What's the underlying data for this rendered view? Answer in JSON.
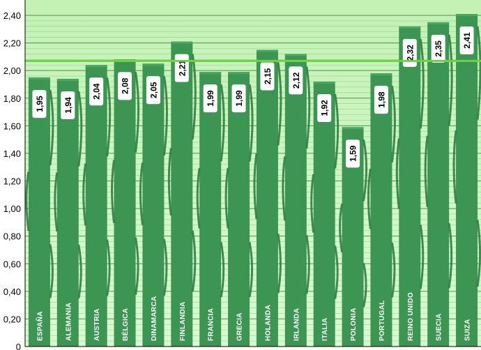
{
  "chart_data": {
    "type": "bar",
    "title": "",
    "xlabel": "",
    "ylabel": "",
    "ylim": [
      0,
      2.4
    ],
    "yticks": [
      "0",
      "0,20",
      "0,40",
      "0,60",
      "0,80",
      "1,00",
      "1,20",
      "1,40",
      "1,60",
      "1,80",
      "2,00",
      "2,20",
      "2,40"
    ],
    "categories": [
      "ESPAÑA",
      "ALEMANIA",
      "AUSTRIA",
      "BÉLGICA",
      "DINAMARCA",
      "FINLANDIA",
      "FRANCIA",
      "GRECIA",
      "HOLANDA",
      "IRLANDA",
      "ITALIA",
      "POLONIA",
      "PORTUGAL",
      "REINO UNIDO",
      "SUECIA",
      "SUIZA"
    ],
    "values": [
      1.95,
      1.94,
      2.04,
      2.08,
      2.05,
      2.21,
      1.99,
      1.99,
      2.15,
      2.12,
      1.92,
      1.59,
      1.98,
      2.32,
      2.35,
      2.41
    ],
    "value_labels": [
      "1,95",
      "1,94",
      "2,04",
      "2,08",
      "2,05",
      "2,21",
      "1,99",
      "1,99",
      "2,15",
      "2,12",
      "1,92",
      "1,59",
      "1,98",
      "2,32",
      "2,35",
      "2,41"
    ],
    "reference_line": 2.07,
    "grid": true,
    "colors": {
      "plot_background": "#cdf5c0",
      "bar": "#3d9553",
      "bar_dark": "#2f7d45",
      "bar_highlight": "#4aa862",
      "gridline": "#3d7a48",
      "reference_line": "#6fd248",
      "label_box": "#ffffff"
    }
  }
}
